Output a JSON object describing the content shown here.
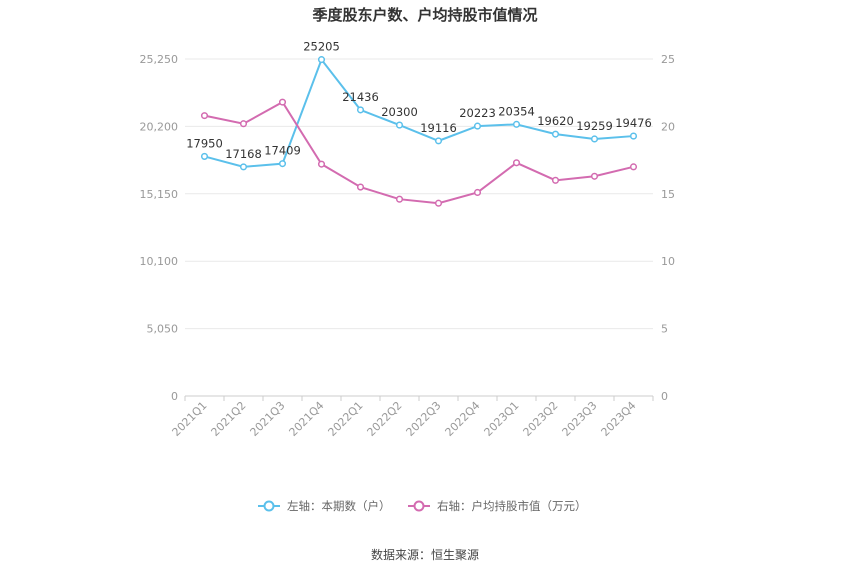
{
  "chart_data": {
    "type": "line",
    "title": "季度股东户数、户均持股市值情况",
    "categories": [
      "2021Q1",
      "2021Q2",
      "2021Q3",
      "2021Q4",
      "2022Q1",
      "2022Q2",
      "2022Q3",
      "2022Q4",
      "2023Q1",
      "2023Q2",
      "2023Q3",
      "2023Q4"
    ],
    "left_axis": {
      "min": 0,
      "max": 25250,
      "ticks": [
        0,
        5050,
        10100,
        15150,
        20200,
        25250
      ],
      "tick_labels": [
        "0",
        "5,050",
        "10,100",
        "15,150",
        "20,200",
        "25,250"
      ]
    },
    "right_axis": {
      "min": 0,
      "max": 25,
      "ticks": [
        0,
        5,
        10,
        15,
        20,
        25
      ],
      "tick_labels": [
        "0",
        "5",
        "10",
        "15",
        "20",
        "25"
      ]
    },
    "series": [
      {
        "name": "左轴：本期数（户）",
        "axis": "left",
        "color": "#5bc0eb",
        "values": [
          17950,
          17168,
          17409,
          25205,
          21436,
          20300,
          19116,
          20223,
          20354,
          19620,
          19259,
          19476
        ],
        "labels": [
          "17950",
          "17168",
          "17409",
          "25205",
          "21436",
          "20300",
          "19116",
          "20223",
          "20354",
          "19620",
          "19259",
          "19476"
        ]
      },
      {
        "name": "右轴：户均持股市值（万元）",
        "axis": "right",
        "color": "#d36bb0",
        "values": [
          20.8,
          20.2,
          21.8,
          17.2,
          15.5,
          14.6,
          14.3,
          15.1,
          17.3,
          16.0,
          16.3,
          17.0
        ]
      }
    ],
    "grid": true,
    "legend_position": "bottom"
  },
  "source_text": "数据来源：恒生聚源"
}
